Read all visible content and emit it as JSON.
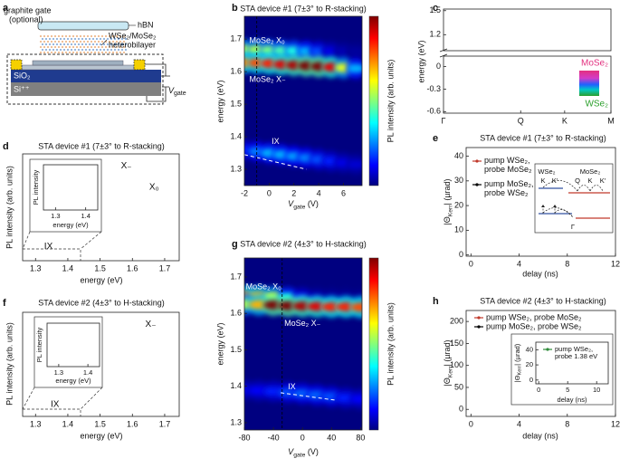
{
  "panel_labels": [
    "a",
    "b",
    "c",
    "d",
    "e",
    "f",
    "g",
    "h"
  ],
  "panel_a": {
    "gate": "graphite gate",
    "gate_note": "(optional)",
    "hbn": "hBN",
    "bilayer": "WSe₂/MoSe₂",
    "bilayer_note": "heterobilayer",
    "oxide": "SiO₂",
    "substrate": "Si⁺⁺",
    "vgate": [
      "V",
      "gate"
    ]
  },
  "e_inset": {
    "left_layer": "WSe₂",
    "right_layer": "MoSe₂",
    "left_valleys": [
      "K",
      "K′"
    ],
    "right_valleys": [
      "Q",
      "K",
      "K′"
    ],
    "gamma": "Γ"
  },
  "chart_data": [
    {
      "type": "heatmap",
      "title": "STA device #1 (7±3° to R-stacking)",
      "xlabel": [
        "V",
        "gate",
        " (V)"
      ],
      "ylabel": "energy (eV)",
      "colorbar_label": "PL intensity (arb. units)",
      "colormap": "jet",
      "clim": [
        0,
        1
      ],
      "x": [
        -2,
        -1,
        0,
        1,
        2,
        3,
        4,
        5,
        6,
        7
      ],
      "series": [
        {
          "name": "MoSe₂ X₀",
          "values": [
            1.668,
            1.667,
            1.666,
            1.665,
            1.664,
            1.663,
            1.662,
            1.662,
            1.662,
            1.662
          ],
          "intensity": [
            0.55,
            0.55,
            0.5,
            0.45,
            0.4,
            0.3,
            0.2,
            0.1,
            0.05,
            0.03
          ]
        },
        {
          "name": "MoSe₂ X₋",
          "values": [
            1.628,
            1.627,
            1.625,
            1.622,
            1.62,
            1.618,
            1.616,
            1.614,
            1.612,
            1.61
          ],
          "intensity": [
            0.75,
            0.8,
            0.85,
            0.9,
            0.95,
            1,
            1,
            0.9,
            0.6,
            0.3
          ]
        },
        {
          "name": "IX",
          "values": [
            1.36,
            1.355,
            1.35,
            1.345,
            1.34,
            1.335,
            1.33,
            1.325,
            1.32,
            1.315
          ],
          "intensity": [
            0.15,
            0.25,
            0.3,
            0.3,
            0.28,
            0.25,
            0.2,
            0.15,
            0.1,
            0.08
          ]
        }
      ],
      "guide": {
        "x": [
          -2,
          3
        ],
        "values": [
          1.345,
          1.3
        ]
      },
      "vline": -1,
      "xlim": [
        -2,
        7.5
      ],
      "ylim": [
        1.25,
        1.77
      ],
      "xticks": [
        -2,
        0,
        2,
        4,
        6
      ],
      "yticks": [
        1.3,
        1.4,
        1.5,
        1.6,
        1.7
      ]
    },
    {
      "type": "band",
      "ylabel": "energy (eV)",
      "x": [
        0,
        0.2,
        0.4,
        0.6,
        0.8,
        1.0,
        1.15,
        1.3,
        1.45,
        1.57,
        1.7,
        1.85,
        2.0,
        2.17
      ],
      "series": [
        {
          "name": "MoSe₂",
          "color": "#e3307f",
          "values": [
            null,
            null,
            null,
            1.5,
            1.3,
            1.24,
            1.33,
            1.38,
            1.2,
            1.06,
            1.2,
            1.42,
            null,
            null
          ]
        },
        {
          "color": "#d23cc8",
          "values": [
            null,
            null,
            null,
            null,
            1.34,
            1.28,
            1.37,
            1.42,
            1.24,
            1.1,
            1.24,
            1.46,
            null,
            null
          ]
        },
        {
          "name": "WSe₂",
          "color": "#2ca02c",
          "values": [
            null,
            null,
            null,
            null,
            null,
            null,
            null,
            -0.5,
            -0.2,
            0.02,
            -0.2,
            -0.5,
            null,
            null
          ]
        },
        {
          "color": "#3aa655",
          "values": [
            null,
            null,
            null,
            null,
            null,
            null,
            null,
            -0.58,
            -0.35,
            -0.18,
            -0.35,
            -0.6,
            null,
            null
          ]
        },
        {
          "color": "#1e90ff",
          "values": [
            -0.03,
            -0.1,
            -0.28,
            -0.55,
            null,
            null,
            null,
            null,
            null,
            null,
            null,
            null,
            null,
            null
          ]
        }
      ],
      "xlim": [
        0,
        2.17
      ],
      "ylim_upper": [
        1.0,
        1.52
      ],
      "ylim_lower": [
        -0.62,
        0.14
      ],
      "xticks": [
        {
          "value": 0,
          "label": "Γ"
        },
        {
          "value": 1,
          "label": "Q"
        },
        {
          "value": 1.57,
          "label": "K"
        },
        {
          "value": 2.17,
          "label": "M"
        }
      ],
      "yticks": [
        1.5,
        1.2,
        0,
        -0.3,
        -0.6
      ]
    },
    {
      "type": "line",
      "title": "STA device #1 (7±3° to R-stacking)",
      "xlabel": "energy (eV)",
      "ylabel": "PL intensity (arb. units)",
      "labels": [
        "X₋",
        "X₀",
        "IX"
      ],
      "x": [
        1.26,
        1.27,
        1.28,
        1.29,
        1.3,
        1.31,
        1.32,
        1.33,
        1.34,
        1.35,
        1.36,
        1.37,
        1.38,
        1.39,
        1.4,
        1.41,
        1.42,
        1.43,
        1.44,
        1.45,
        1.46,
        1.47,
        1.48,
        1.49,
        1.5,
        1.51,
        1.52,
        1.53,
        1.54,
        1.55,
        1.56,
        1.57,
        1.58,
        1.59,
        1.6,
        1.61,
        1.62,
        1.63,
        1.64,
        1.65,
        1.66,
        1.67,
        1.68,
        1.69,
        1.7,
        1.71,
        1.72,
        1.73,
        1.74
      ],
      "series": [
        {
          "color": "#000000",
          "values": [
            0.02,
            0.025,
            0.03,
            0.04,
            0.05,
            0.06,
            0.07,
            0.08,
            0.08,
            0.075,
            0.065,
            0.05,
            0.04,
            0.035,
            0.03,
            0.03,
            0.03,
            0.03,
            0.03,
            0.03,
            0.03,
            0.03,
            0.035,
            0.035,
            0.04,
            0.04,
            0.045,
            0.05,
            0.055,
            0.06,
            0.07,
            0.08,
            0.1,
            0.15,
            0.3,
            0.7,
            0.98,
            0.6,
            0.72,
            0.45,
            0.15,
            0.07,
            0.04,
            0.03,
            0.025,
            0.02,
            0.02,
            0.02,
            0.02
          ]
        }
      ],
      "xlim": [
        1.26,
        1.745
      ],
      "ylim": [
        0,
        1.05
      ],
      "xticks": [
        1.3,
        1.4,
        1.5,
        1.6,
        1.7
      ]
    },
    {
      "type": "line",
      "xlabel": "energy (eV)",
      "ylabel": "PL intensity",
      "x": [
        1.26,
        1.28,
        1.3,
        1.32,
        1.34,
        1.36,
        1.38,
        1.4,
        1.42,
        1.44
      ],
      "series": [
        {
          "color": "#9a9a9a",
          "values": [
            0.15,
            0.3,
            0.45,
            0.5,
            0.4,
            0.25,
            0.1,
            0.04,
            0.02,
            0.01
          ]
        },
        {
          "color": "#9a9a9a",
          "values": [
            0.02,
            0.04,
            0.12,
            0.35,
            0.55,
            0.6,
            0.5,
            0.35,
            0.25,
            0.15
          ]
        },
        {
          "color": "#000000",
          "values": [
            0.2,
            0.3,
            0.5,
            0.75,
            0.95,
            0.85,
            0.6,
            0.4,
            0.3,
            0.25
          ]
        },
        {
          "color": "#c0392b",
          "values": [
            0.22,
            0.32,
            0.5,
            0.73,
            0.9,
            0.83,
            0.6,
            0.42,
            0.3,
            0.24
          ]
        }
      ],
      "xlim": [
        1.26,
        1.44
      ],
      "ylim": [
        0,
        1.05
      ],
      "xticks": [
        1.3,
        1.4
      ]
    },
    {
      "type": "line",
      "title": "STA device #1 (7±3° to R-stacking)",
      "xlabel": "delay (ns)",
      "ylabel": [
        "|Θ",
        "Kerr",
        "| (µrad)"
      ],
      "x": [
        -0.3,
        0,
        0.15,
        0.3,
        0.5,
        0.75,
        1,
        1.5,
        2,
        2.5,
        3,
        3.5,
        4,
        4.5,
        5,
        5.5,
        6,
        6.5,
        7,
        7.5,
        8,
        8.5,
        9,
        9.5,
        10,
        10.5,
        11,
        11.5,
        12
      ],
      "series": [
        {
          "name": "pump WSe₂, probe MoSe₂",
          "color": "#c0392b",
          "values": [
            0,
            35,
            22,
            14,
            8,
            5,
            3,
            2,
            1.5,
            1,
            0.5,
            1,
            0,
            1,
            -0.5,
            0.5,
            1,
            0,
            0.5,
            -0.5,
            1,
            0,
            0.5,
            1,
            -0.5,
            0,
            0.5,
            1,
            0
          ]
        },
        {
          "name": "pump MoSe₂, probe WSe₂",
          "color": "#000000",
          "values": [
            0,
            42,
            30,
            20,
            13,
            9,
            7,
            5,
            4,
            3.5,
            3,
            4,
            2.5,
            3,
            4,
            2,
            3,
            2.5,
            3.5,
            2,
            3,
            1.5,
            2.5,
            3,
            2,
            3,
            1.5,
            2,
            2.5
          ]
        }
      ],
      "xlim": [
        -0.4,
        12
      ],
      "ylim": [
        -0.5,
        43.5
      ],
      "xticks": [
        0,
        4,
        8,
        12
      ],
      "yticks": [
        0,
        10,
        20,
        30,
        40
      ]
    },
    {
      "type": "line",
      "title": "STA device #2 (4±3° to H-stacking)",
      "xlabel": "energy (eV)",
      "ylabel": "PL intensity (arb. units)",
      "labels": [
        "X₋",
        "IX"
      ],
      "x": [
        1.26,
        1.27,
        1.28,
        1.29,
        1.3,
        1.31,
        1.32,
        1.33,
        1.34,
        1.35,
        1.36,
        1.37,
        1.38,
        1.39,
        1.4,
        1.41,
        1.42,
        1.43,
        1.44,
        1.45,
        1.46,
        1.47,
        1.48,
        1.49,
        1.5,
        1.51,
        1.52,
        1.53,
        1.54,
        1.55,
        1.56,
        1.57,
        1.58,
        1.59,
        1.6,
        1.61,
        1.62,
        1.63,
        1.64,
        1.65,
        1.66,
        1.67,
        1.68,
        1.69,
        1.7,
        1.71,
        1.72,
        1.73,
        1.74
      ],
      "series": [
        {
          "color": "#000000",
          "values": [
            0.02,
            0.02,
            0.02,
            0.02,
            0.02,
            0.02,
            0.025,
            0.03,
            0.035,
            0.045,
            0.06,
            0.065,
            0.055,
            0.04,
            0.03,
            0.025,
            0.02,
            0.02,
            0.02,
            0.02,
            0.02,
            0.02,
            0.02,
            0.025,
            0.025,
            0.03,
            0.03,
            0.035,
            0.04,
            0.045,
            0.05,
            0.06,
            0.07,
            0.09,
            0.13,
            0.35,
            0.88,
            0.98,
            0.45,
            0.15,
            0.07,
            0.04,
            0.03,
            0.025,
            0.02,
            0.02,
            0.02,
            0.02,
            0.02
          ]
        }
      ],
      "xlim": [
        1.26,
        1.745
      ],
      "ylim": [
        0,
        1.05
      ],
      "xticks": [
        1.3,
        1.4,
        1.5,
        1.6,
        1.7
      ]
    },
    {
      "type": "line",
      "xlabel": "energy (eV)",
      "ylabel": "PL intensity",
      "x": [
        1.26,
        1.28,
        1.3,
        1.32,
        1.34,
        1.36,
        1.38,
        1.4,
        1.42,
        1.44
      ],
      "series": [
        {
          "color": "#000000",
          "values": [
            0.1,
            0.12,
            0.18,
            0.35,
            0.8,
            0.95,
            0.6,
            0.35,
            0.25,
            0.2
          ]
        }
      ],
      "xlim": [
        1.26,
        1.44
      ],
      "ylim": [
        0,
        1.05
      ],
      "xticks": [
        1.3,
        1.4
      ]
    },
    {
      "type": "heatmap",
      "title": "STA device #2 (4±3° to H-stacking)",
      "xlabel": [
        "V",
        "gate",
        " (V)"
      ],
      "ylabel": "energy (eV)",
      "colorbar_label": "PL intensity (arb. units)",
      "colormap": "jet",
      "clim": [
        0,
        1
      ],
      "x": [
        -80,
        -60,
        -40,
        -20,
        0,
        20,
        40,
        60,
        80
      ],
      "series": [
        {
          "name": "MoSe₂ X₀",
          "values": [
            1.648,
            1.647,
            1.645,
            1.643,
            1.642,
            1.64,
            1.64,
            1.64,
            1.64
          ],
          "intensity": [
            0.75,
            0.7,
            0.6,
            0.35,
            0.15,
            0.08,
            0.05,
            0.04,
            0.03
          ]
        },
        {
          "name": "MoSe₂ X₋",
          "values": [
            1.625,
            1.624,
            1.623,
            1.621,
            1.62,
            1.619,
            1.618,
            1.618,
            1.617
          ],
          "intensity": [
            0.55,
            0.7,
            1,
            1,
            0.95,
            0.9,
            0.85,
            0.85,
            0.8
          ]
        },
        {
          "name": "IX",
          "values": [
            1.39,
            1.388,
            1.386,
            1.383,
            1.38,
            1.376,
            1.372,
            1.368,
            1.365
          ],
          "intensity": [
            0.1,
            0.12,
            0.15,
            0.2,
            0.22,
            0.22,
            0.2,
            0.15,
            0.12
          ]
        }
      ],
      "guide": {
        "x": [
          -30,
          45
        ],
        "values": [
          1.382,
          1.362
        ]
      },
      "vline": -28,
      "xlim": [
        -80,
        82
      ],
      "ylim": [
        1.28,
        1.752
      ],
      "xticks": [
        -80,
        -40,
        0,
        40,
        80
      ],
      "yticks": [
        1.3,
        1.4,
        1.5,
        1.6,
        1.7
      ]
    },
    {
      "type": "line",
      "title": "STA device #2 (4±3° to H-stacking)",
      "xlabel": "delay (ns)",
      "ylabel": [
        "|Θ",
        "Kerr",
        "| (µrad)"
      ],
      "x": [
        -0.3,
        0,
        0.15,
        0.3,
        0.5,
        0.75,
        1,
        1.5,
        2,
        2.5,
        3,
        3.5,
        4,
        4.5,
        5,
        5.5,
        6,
        6.5,
        7,
        7.5,
        8,
        8.5,
        9,
        9.5,
        10,
        10.5,
        11,
        11.5,
        12
      ],
      "series": [
        {
          "name": "pump WSe₂, probe MoSe₂",
          "color": "#c0392b",
          "values": [
            5,
            215,
            150,
            100,
            60,
            35,
            25,
            15,
            10,
            8,
            6,
            5,
            4,
            4,
            3,
            3,
            2,
            3,
            2,
            2,
            1,
            2,
            1,
            1,
            0,
            1,
            0,
            1,
            0
          ]
        },
        {
          "name": "pump MoSe₂, probe WSe₂",
          "color": "#000000",
          "values": [
            5,
            40,
            30,
            22,
            15,
            12,
            10,
            8,
            6,
            5,
            5,
            4,
            4,
            3,
            3,
            3,
            2,
            2,
            3,
            2,
            2,
            1,
            2,
            2,
            1,
            2,
            1,
            1,
            1
          ]
        }
      ],
      "xlim": [
        -0.4,
        12
      ],
      "ylim": [
        -16,
        225
      ],
      "xticks": [
        0,
        4,
        8,
        12
      ],
      "yticks": [
        0,
        50,
        100,
        150,
        200
      ]
    },
    {
      "type": "line",
      "xlabel": "delay (ns)",
      "ylabel": [
        "|Θ",
        "Kerr",
        "| (µrad)"
      ],
      "x": [
        0,
        0.5,
        1,
        1.5,
        2,
        3,
        4,
        5,
        6,
        7,
        8,
        9,
        10,
        11,
        12
      ],
      "series": [
        {
          "name": "pump WSe₂, probe 1.38 eV",
          "color": "#2e8b3a",
          "values": [
            45,
            25,
            15,
            10,
            8,
            6,
            5,
            4,
            4,
            3,
            3,
            4,
            2,
            3,
            3
          ]
        }
      ],
      "xlim": [
        -0.5,
        12
      ],
      "ylim": [
        -5,
        50
      ],
      "xticks": [
        0,
        5,
        10
      ],
      "yticks": [
        0,
        20,
        40
      ]
    }
  ]
}
